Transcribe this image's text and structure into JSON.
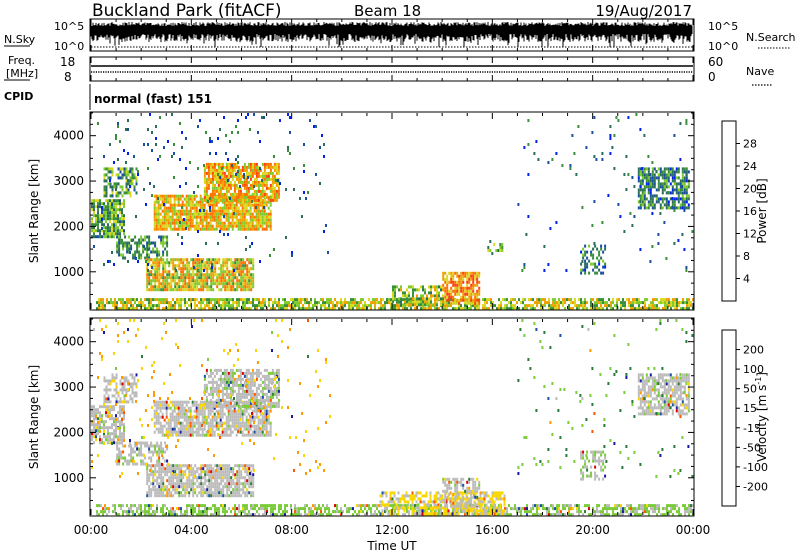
{
  "header": {
    "title": "Buckland Park (fitACF)",
    "beam": "Beam 18",
    "date": "19/Aug/2017"
  },
  "noise_panel": {
    "left_label": "N.Sky",
    "right_label": "N.Search",
    "left_ticks": [
      "10^5",
      "10^0"
    ],
    "right_ticks": [
      "10^5",
      "10^0"
    ]
  },
  "freq_panel": {
    "left_label_1": "Freq.",
    "left_label_2": "[MHz]",
    "right_label": "Nave",
    "left_ticks": [
      "18",
      "8"
    ],
    "right_ticks": [
      "60",
      "0"
    ]
  },
  "cpid": {
    "label": "CPID",
    "value": "normal (fast) 151"
  },
  "colors": {
    "power_scale": [
      "#0022ee",
      "#1a4fa0",
      "#2b6f5a",
      "#3a8f3a",
      "#7fcb2e",
      "#d8d820",
      "#f0a000",
      "#ff7000",
      "#ff4010",
      "#e00000"
    ],
    "velocity_scale": [
      "#1a1aa0",
      "#1e50a8",
      "#2a7a3a",
      "#7acc3a",
      "#bbbbbb",
      "#f8d800",
      "#ff9a00",
      "#ff5500",
      "#e00000"
    ]
  },
  "chart_data": [
    {
      "type": "heatmap",
      "panel": "power",
      "ylabel": "Slant Range [km]",
      "yticks": [
        "4000",
        "3000",
        "2000",
        "1000"
      ],
      "ylim": [
        180,
        4500
      ],
      "xlim": [
        0,
        24
      ],
      "colorbar_label": "Power [dB]",
      "colorbar_ticks": [
        "28",
        "24",
        "20",
        "16",
        "12",
        "8",
        "4"
      ],
      "colorbar_range": [
        0,
        30
      ],
      "regions": [
        {
          "t0": 0.0,
          "t1": 1.3,
          "r0": 1800,
          "r1": 2600,
          "v": 11,
          "d": 0.8
        },
        {
          "t0": 0.5,
          "t1": 1.8,
          "r0": 2700,
          "r1": 3300,
          "v": 10,
          "d": 0.6
        },
        {
          "t0": 1.0,
          "t1": 3.0,
          "r0": 1300,
          "r1": 1800,
          "v": 9,
          "d": 0.6
        },
        {
          "t0": 2.5,
          "t1": 7.2,
          "r0": 1950,
          "r1": 2700,
          "v": 18,
          "d": 0.85
        },
        {
          "t0": 4.5,
          "t1": 7.5,
          "r0": 2600,
          "r1": 3400,
          "v": 19,
          "d": 0.8
        },
        {
          "t0": 2.2,
          "t1": 6.5,
          "r0": 600,
          "r1": 1300,
          "v": 17,
          "d": 0.85
        },
        {
          "t0": 0.2,
          "t1": 24.0,
          "r0": 180,
          "r1": 420,
          "v": 15,
          "d": 0.7
        },
        {
          "t0": 14.0,
          "t1": 15.5,
          "r0": 300,
          "r1": 1000,
          "v": 21,
          "d": 0.8
        },
        {
          "t0": 12.0,
          "t1": 14.0,
          "r0": 300,
          "r1": 700,
          "v": 14,
          "d": 0.6
        },
        {
          "t0": 19.5,
          "t1": 20.5,
          "r0": 1000,
          "r1": 1600,
          "v": 8,
          "d": 0.5
        },
        {
          "t0": 21.8,
          "t1": 23.8,
          "r0": 2400,
          "r1": 3300,
          "v": 8,
          "d": 0.7
        },
        {
          "t0": 15.8,
          "t1": 16.4,
          "r0": 1400,
          "r1": 1700,
          "v": 12,
          "d": 0.4
        },
        {
          "t0": 0.0,
          "t1": 9.5,
          "r0": 1000,
          "r1": 4500,
          "v": 6,
          "d": 0.03
        },
        {
          "t0": 17.0,
          "t1": 24.0,
          "r0": 1000,
          "r1": 4500,
          "v": 6,
          "d": 0.02
        }
      ]
    },
    {
      "type": "heatmap",
      "panel": "velocity",
      "ylabel": "Slant Range [km]",
      "yticks": [
        "4000",
        "3000",
        "2000",
        "1000"
      ],
      "ylim": [
        180,
        4500
      ],
      "xlim": [
        0,
        24
      ],
      "xlabel": "Time UT",
      "xticks": [
        "00:00",
        "04:00",
        "08:00",
        "12:00",
        "16:00",
        "20:00",
        "00:00"
      ],
      "colorbar_label": "Velocity [m s",
      "colorbar_label_sup": "-1",
      "colorbar_label_end": "]",
      "colorbar_ticks": [
        "200",
        "100",
        "50",
        "15",
        "-15",
        "-50",
        "-100",
        "-200"
      ],
      "colorbar_range": [
        -250,
        250
      ],
      "regions": [
        {
          "t0": 0.0,
          "t1": 1.3,
          "r0": 1800,
          "r1": 2600,
          "v": 0,
          "d": 0.7
        },
        {
          "t0": 0.5,
          "t1": 1.8,
          "r0": 2700,
          "r1": 3300,
          "v": 5,
          "d": 0.5
        },
        {
          "t0": 1.0,
          "t1": 3.0,
          "r0": 1300,
          "r1": 1800,
          "v": -5,
          "d": 0.5
        },
        {
          "t0": 2.5,
          "t1": 7.2,
          "r0": 1950,
          "r1": 2700,
          "v": 0,
          "d": 0.8
        },
        {
          "t0": 4.5,
          "t1": 7.5,
          "r0": 2600,
          "r1": 3400,
          "v": -5,
          "d": 0.7
        },
        {
          "t0": 2.2,
          "t1": 6.5,
          "r0": 600,
          "r1": 1300,
          "v": 0,
          "d": 0.8
        },
        {
          "t0": 0.2,
          "t1": 24.0,
          "r0": 180,
          "r1": 420,
          "v": -40,
          "d": 0.6
        },
        {
          "t0": 11.5,
          "t1": 16.5,
          "r0": 200,
          "r1": 700,
          "v": 40,
          "d": 0.6
        },
        {
          "t0": 14.0,
          "t1": 15.5,
          "r0": 400,
          "r1": 1000,
          "v": 0,
          "d": 0.6
        },
        {
          "t0": 19.5,
          "t1": 20.5,
          "r0": 1000,
          "r1": 1600,
          "v": -20,
          "d": 0.4
        },
        {
          "t0": 21.8,
          "t1": 23.8,
          "r0": 2400,
          "r1": 3300,
          "v": 0,
          "d": 0.7
        },
        {
          "t0": 0.0,
          "t1": 9.5,
          "r0": 1000,
          "r1": 4500,
          "v": 80,
          "d": 0.03
        },
        {
          "t0": 17.0,
          "t1": 24.0,
          "r0": 1000,
          "r1": 4500,
          "v": -80,
          "d": 0.02
        }
      ]
    }
  ]
}
